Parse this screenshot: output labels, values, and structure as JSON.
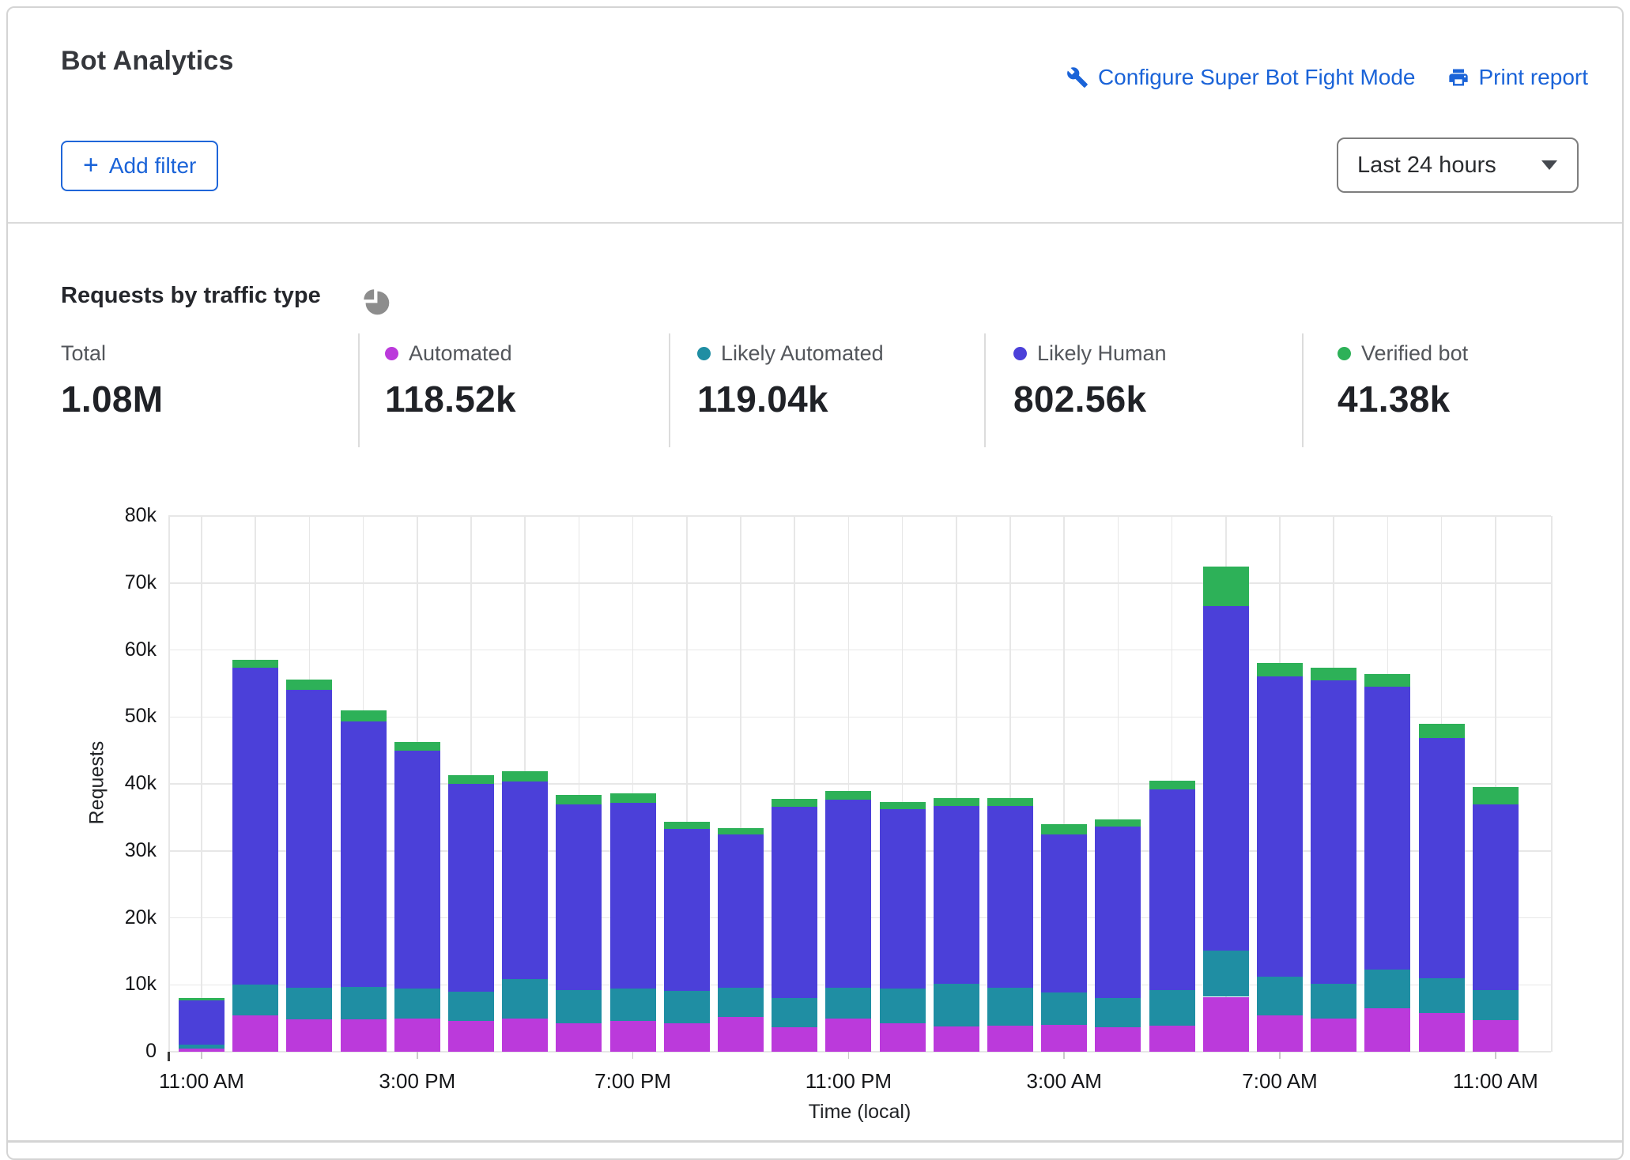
{
  "header": {
    "title": "Bot Analytics",
    "configure_link": "Configure Super Bot Fight Mode",
    "print_link": "Print report",
    "add_filter_plus": "+",
    "add_filter_label": "Add filter",
    "time_range_value": "Last 24 hours"
  },
  "section": {
    "title": "Requests by traffic type"
  },
  "stats": [
    {
      "label": "Total",
      "value": "1.08M",
      "color": ""
    },
    {
      "label": "Automated",
      "value": "118.52k",
      "color": "#bb3adb"
    },
    {
      "label": "Likely Automated",
      "value": "119.04k",
      "color": "#1f8ea3"
    },
    {
      "label": "Likely Human",
      "value": "802.56k",
      "color": "#4b40d9"
    },
    {
      "label": "Verified bot",
      "value": "41.38k",
      "color": "#2db158"
    }
  ],
  "chart_data": {
    "type": "bar",
    "stacked": true,
    "title": "Requests by traffic type",
    "xlabel": "Time (local)",
    "ylabel": "Requests",
    "unit": "thousands of requests",
    "ylim": [
      0,
      80
    ],
    "grid": true,
    "y_ticks": [
      "0",
      "10k",
      "20k",
      "30k",
      "40k",
      "50k",
      "60k",
      "70k",
      "80k"
    ],
    "x_tick_labels": [
      "11:00 AM",
      "3:00 PM",
      "7:00 PM",
      "11:00 PM",
      "3:00 AM",
      "7:00 AM",
      "11:00 AM"
    ],
    "x_tick_indices": [
      0,
      4,
      8,
      12,
      16,
      20,
      24
    ],
    "categories": [
      "11:00 AM",
      "12:00 PM",
      "1:00 PM",
      "2:00 PM",
      "3:00 PM",
      "4:00 PM",
      "5:00 PM",
      "6:00 PM",
      "7:00 PM",
      "8:00 PM",
      "9:00 PM",
      "10:00 PM",
      "11:00 PM",
      "12:00 AM",
      "1:00 AM",
      "2:00 AM",
      "3:00 AM",
      "4:00 AM",
      "5:00 AM",
      "6:00 AM",
      "7:00 AM",
      "8:00 AM",
      "9:00 AM",
      "10:00 AM",
      "11:00 AM"
    ],
    "series": [
      {
        "name": "Automated",
        "color": "#bb3adb",
        "values": [
          0.5,
          5.4,
          4.8,
          4.8,
          5.0,
          4.6,
          5.0,
          4.2,
          4.6,
          4.2,
          5.2,
          3.6,
          4.9,
          4.2,
          3.8,
          3.9,
          4.0,
          3.7,
          3.9,
          8.2,
          5.4,
          5.0,
          6.5,
          5.8,
          4.7
        ]
      },
      {
        "name": "Likely Automated",
        "color": "#1f8ea3",
        "values": [
          0.6,
          4.6,
          4.8,
          4.9,
          4.4,
          4.4,
          5.8,
          5.0,
          4.8,
          4.9,
          4.4,
          4.4,
          4.7,
          5.2,
          6.3,
          5.7,
          4.8,
          4.3,
          5.3,
          6.9,
          5.8,
          5.2,
          5.8,
          5.2,
          4.5
        ]
      },
      {
        "name": "Likely Human",
        "color": "#4b40d9",
        "values": [
          6.6,
          47.3,
          44.4,
          39.6,
          35.5,
          31.0,
          29.6,
          27.7,
          27.8,
          24.2,
          22.8,
          28.6,
          28.0,
          26.8,
          26.6,
          27.1,
          23.6,
          25.6,
          30.0,
          51.5,
          44.8,
          45.2,
          42.2,
          35.9,
          27.7
        ]
      },
      {
        "name": "Verified bot",
        "color": "#2db158",
        "values": [
          0.3,
          1.2,
          1.6,
          1.7,
          1.4,
          1.3,
          1.5,
          1.4,
          1.4,
          1.0,
          1.0,
          1.1,
          1.3,
          1.1,
          1.2,
          1.2,
          1.6,
          1.1,
          1.3,
          5.8,
          2.0,
          2.0,
          1.9,
          2.1,
          2.6
        ]
      }
    ],
    "legend_position": "top stat cards"
  }
}
